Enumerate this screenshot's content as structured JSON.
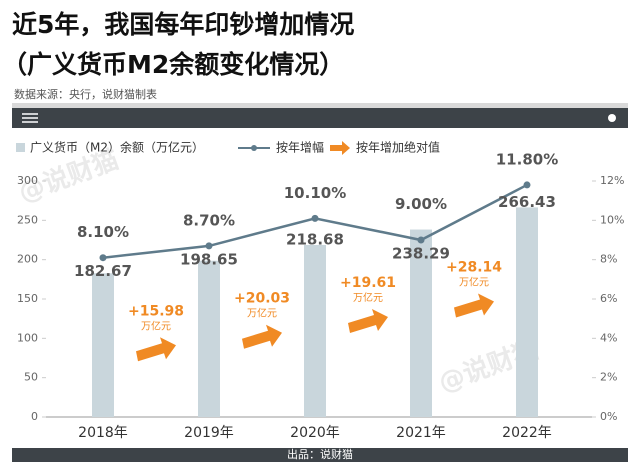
{
  "chart_data": {
    "type": "bar_line",
    "title": "近5年，我国每年印钞增加情况",
    "subtitle": "（广义货币M2余额变化情况）",
    "source": "数据来源：央行，说财猫制表",
    "footer": "出品：说财猫",
    "watermark": "@说财猫",
    "categories": [
      "2018年",
      "2019年",
      "2020年",
      "2021年",
      "2022年"
    ],
    "series": [
      {
        "name": "广义货币（M2）余额（万亿元）",
        "color": "#c9d6dc",
        "values": [
          182.67,
          198.65,
          218.68,
          238.29,
          266.43
        ]
      },
      {
        "name": "按年增幅",
        "color": "#5f7b8b",
        "axis": "y2",
        "values": [
          8.1,
          8.7,
          10.1,
          9.0,
          11.8
        ],
        "value_labels": [
          "8.10%",
          "8.70%",
          "10.10%",
          "9.00%",
          "11.80%"
        ]
      }
    ],
    "increase": {
      "name": "按年增加绝对值",
      "color": "#f08a24",
      "values": [
        15.98,
        20.03,
        19.61,
        28.14
      ],
      "value_labels": [
        "+15.98",
        "+20.03",
        "+19.61",
        "+28.14"
      ],
      "unit": "万亿元"
    },
    "ylim": [
      0,
      300
    ],
    "yticks": [
      0,
      50,
      100,
      150,
      200,
      250,
      300
    ],
    "y2lim": [
      0,
      12
    ],
    "y2ticks": [
      {
        "value": 0,
        "label": "0%"
      },
      {
        "value": 2,
        "label": "2%"
      },
      {
        "value": 4,
        "label": "4%"
      },
      {
        "value": 6,
        "label": "6%"
      },
      {
        "value": 8,
        "label": "8%"
      },
      {
        "value": 10,
        "label": "10%"
      },
      {
        "value": 12,
        "label": "12%"
      }
    ]
  }
}
